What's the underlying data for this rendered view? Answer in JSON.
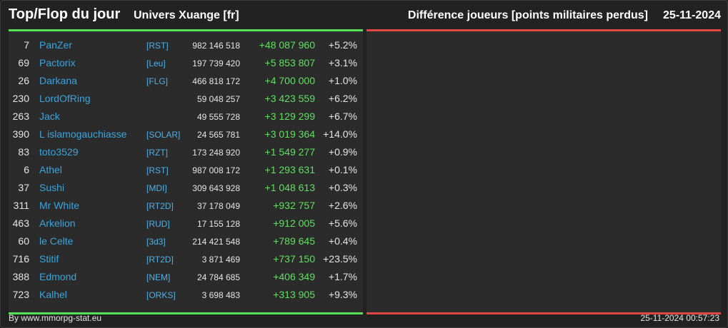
{
  "header": {
    "title": "Top/Flop du jour",
    "universe": "Univers Xuange [fr]",
    "metric": "Différence joueurs [points militaires perdus]",
    "date": "25-11-2024"
  },
  "colors": {
    "top_accent": "#55e055",
    "flop_accent": "#e04a42",
    "name": "#3aa4dd",
    "gain": "#5fe05f"
  },
  "top": [
    {
      "rank": "7",
      "name": "PanZer",
      "ally": "[RST]",
      "points": "982 146 518",
      "diff": "+48 087 960",
      "pct": "+5.2%"
    },
    {
      "rank": "69",
      "name": "Pactorix",
      "ally": "[Leu]",
      "points": "197 739 420",
      "diff": "+5 853 807",
      "pct": "+3.1%"
    },
    {
      "rank": "26",
      "name": "Darkana",
      "ally": "[FLG]",
      "points": "466 818 172",
      "diff": "+4 700 000",
      "pct": "+1.0%"
    },
    {
      "rank": "230",
      "name": "LordOfRing",
      "ally": "",
      "points": "59 048 257",
      "diff": "+3 423 559",
      "pct": "+6.2%"
    },
    {
      "rank": "263",
      "name": "Jack",
      "ally": "",
      "points": "49 555 728",
      "diff": "+3 129 299",
      "pct": "+6.7%"
    },
    {
      "rank": "390",
      "name": "L islamogauchiasse",
      "ally": "[SOLAR]",
      "points": "24 565 781",
      "diff": "+3 019 364",
      "pct": "+14.0%"
    },
    {
      "rank": "83",
      "name": "toto3529",
      "ally": "[RZT]",
      "points": "173 248 920",
      "diff": "+1 549 277",
      "pct": "+0.9%"
    },
    {
      "rank": "6",
      "name": "Athel",
      "ally": "[RST]",
      "points": "987 008 172",
      "diff": "+1 293 631",
      "pct": "+0.1%"
    },
    {
      "rank": "37",
      "name": "Sushi",
      "ally": "[MDI]",
      "points": "309 643 928",
      "diff": "+1 048 613",
      "pct": "+0.3%"
    },
    {
      "rank": "311",
      "name": "Mr White",
      "ally": "[RT2D]",
      "points": "37 178 049",
      "diff": "+932 757",
      "pct": "+2.6%"
    },
    {
      "rank": "463",
      "name": "Arkelion",
      "ally": "[RUD]",
      "points": "17 155 128",
      "diff": "+912 005",
      "pct": "+5.6%"
    },
    {
      "rank": "60",
      "name": "le Celte",
      "ally": "[3d3]",
      "points": "214 421 548",
      "diff": "+789 645",
      "pct": "+0.4%"
    },
    {
      "rank": "716",
      "name": "Stitif",
      "ally": "[RT2D]",
      "points": "3 871 469",
      "diff": "+737 150",
      "pct": "+23.5%"
    },
    {
      "rank": "388",
      "name": "Edmond",
      "ally": "[NEM]",
      "points": "24 784 685",
      "diff": "+406 349",
      "pct": "+1.7%"
    },
    {
      "rank": "723",
      "name": "Kalhel",
      "ally": "[ORKS]",
      "points": "3 698 483",
      "diff": "+313 905",
      "pct": "+9.3%"
    }
  ],
  "flop": [],
  "footer": {
    "credit": "By www.mmorpg-stat.eu",
    "timestamp": "25-11-2024 00:57:23"
  }
}
